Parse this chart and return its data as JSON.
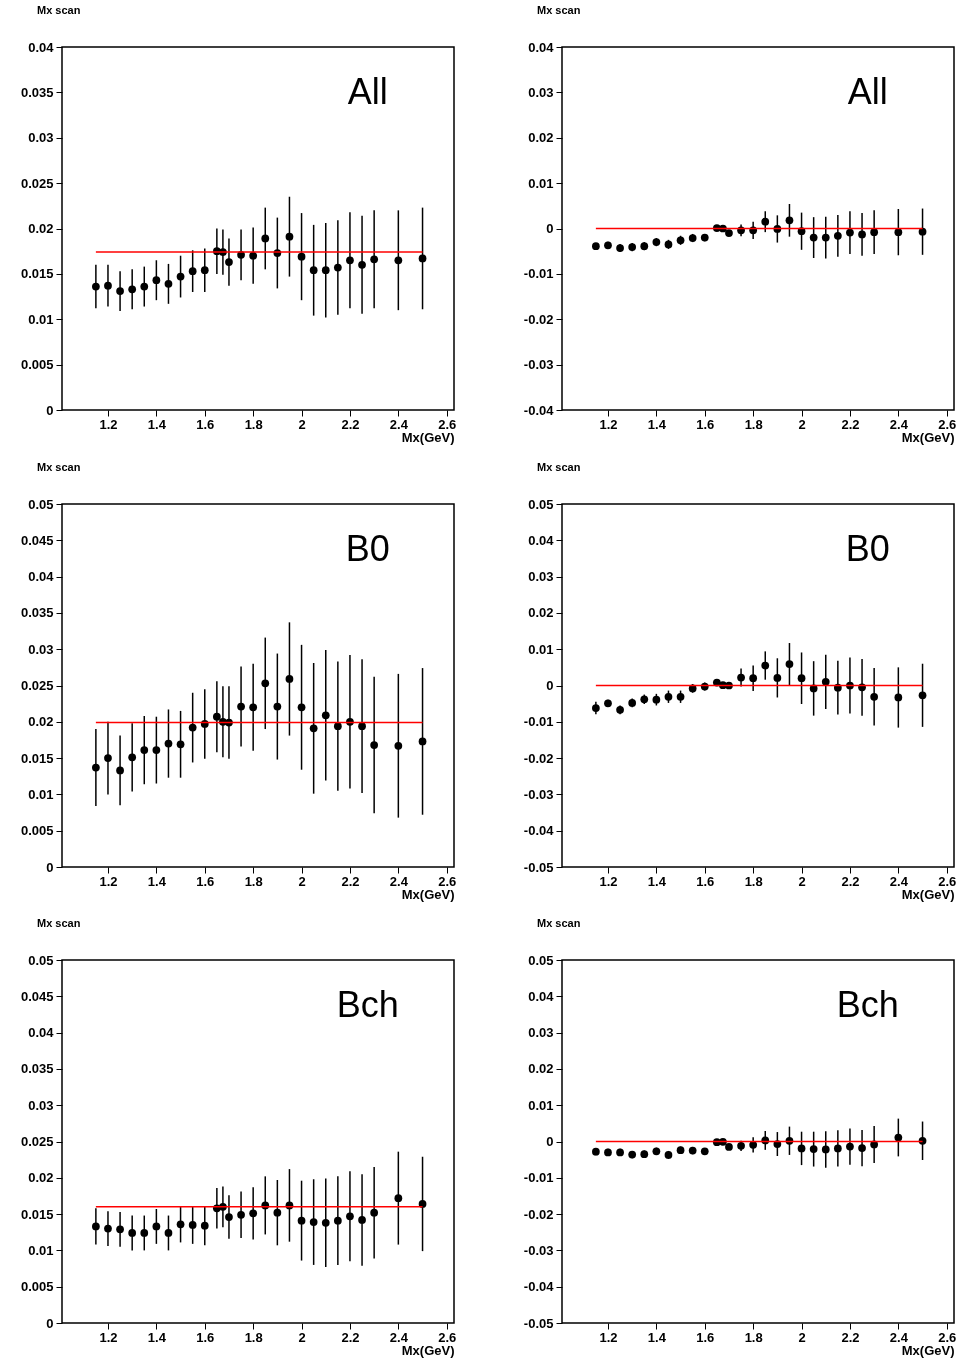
{
  "chart_data": [
    {
      "type": "scatter",
      "title": "Mx scan",
      "xlabel": "Mx(GeV)",
      "annotations": [
        "All"
      ],
      "grid": false,
      "x": [
        1.15,
        1.2,
        1.25,
        1.3,
        1.35,
        1.4,
        1.45,
        1.5,
        1.55,
        1.6,
        1.65,
        1.675,
        1.7,
        1.75,
        1.8,
        1.85,
        1.9,
        1.95,
        2.0,
        2.05,
        2.1,
        2.15,
        2.2,
        2.25,
        2.3,
        2.4,
        2.5
      ],
      "xlim": [
        1.01,
        2.63
      ],
      "xticks": [
        1.2,
        1.4,
        1.6,
        1.8,
        2,
        2.2,
        2.4,
        2.6
      ],
      "ylim": [
        0,
        0.04
      ],
      "yticks": [
        0,
        0.005,
        0.01,
        0.015,
        0.02,
        0.025,
        0.03,
        0.035,
        0.04
      ],
      "series": [
        {
          "color": "#000000",
          "marker": "circle",
          "values": [
            0.0136,
            0.0137,
            0.0131,
            0.0133,
            0.0136,
            0.0143,
            0.0139,
            0.0147,
            0.0153,
            0.0154,
            0.0175,
            0.0174,
            0.0163,
            0.0171,
            0.017,
            0.0189,
            0.0173,
            0.0191,
            0.0169,
            0.0154,
            0.0154,
            0.0157,
            0.0165,
            0.016,
            0.0166,
            0.0165,
            0.0167
          ],
          "errors": [
            0.0024,
            0.0023,
            0.0022,
            0.0022,
            0.0022,
            0.0022,
            0.0022,
            0.0023,
            0.0023,
            0.0024,
            0.0025,
            0.0025,
            0.0026,
            0.0028,
            0.0031,
            0.0034,
            0.0039,
            0.0044,
            0.0048,
            0.005,
            0.0052,
            0.0052,
            0.0053,
            0.0054,
            0.0054,
            0.0055,
            0.0056
          ]
        },
        {
          "type": "line",
          "color": "#ff0000",
          "values": [
            0.0174,
            0.0174,
            0.0174,
            0.0174,
            0.0174,
            0.0174,
            0.0174,
            0.0174,
            0.0174,
            0.0174,
            0.0174,
            0.0174,
            0.0174,
            0.0174,
            0.0174,
            0.0174,
            0.0174,
            0.0174,
            0.0174,
            0.0174,
            0.0174,
            0.0174,
            0.0174,
            0.0174,
            0.0174,
            0.0174,
            0.0174
          ]
        }
      ]
    },
    {
      "type": "scatter",
      "title": "Mx scan",
      "xlabel": "Mx(GeV)",
      "annotations": [
        "All"
      ],
      "grid": false,
      "x": [
        1.15,
        1.2,
        1.25,
        1.3,
        1.35,
        1.4,
        1.45,
        1.5,
        1.55,
        1.6,
        1.65,
        1.675,
        1.7,
        1.75,
        1.8,
        1.85,
        1.9,
        1.95,
        2.0,
        2.05,
        2.1,
        2.15,
        2.2,
        2.25,
        2.3,
        2.4,
        2.5
      ],
      "xlim": [
        1.01,
        2.63
      ],
      "xticks": [
        1.2,
        1.4,
        1.6,
        1.8,
        2,
        2.2,
        2.4,
        2.6
      ],
      "ylim": [
        -0.04,
        0.04
      ],
      "yticks": [
        -0.04,
        -0.03,
        -0.02,
        -0.01,
        0,
        0.01,
        0.02,
        0.03,
        0.04
      ],
      "series": [
        {
          "color": "#000000",
          "marker": "circle",
          "values": [
            -0.0039,
            -0.0037,
            -0.0043,
            -0.0041,
            -0.0039,
            -0.003,
            -0.0035,
            -0.0026,
            -0.0021,
            -0.002,
            0.0001,
            0,
            -0.001,
            -0.0004,
            -0.0004,
            0.0015,
            -0.0001,
            0.0018,
            -0.0006,
            -0.002,
            -0.002,
            -0.0016,
            -0.0009,
            -0.0013,
            -0.0008,
            -0.0008,
            -0.0007
          ],
          "errors": [
            0.0007,
            0.0008,
            0.0009,
            0.0009,
            0.0009,
            0.0009,
            0.001,
            0.001,
            0.0009,
            0.0008,
            0.0003,
            0.0003,
            0.0005,
            0.0013,
            0.0019,
            0.0023,
            0.003,
            0.0036,
            0.0041,
            0.0045,
            0.0046,
            0.0046,
            0.0047,
            0.0047,
            0.0048,
            0.0051,
            0.0051
          ]
        },
        {
          "type": "line",
          "color": "#ff0000",
          "values": [
            0,
            0,
            0,
            0,
            0,
            0,
            0,
            0,
            0,
            0,
            0,
            0,
            0,
            0,
            0,
            0,
            0,
            0,
            0,
            0,
            0,
            0,
            0,
            0,
            0,
            0,
            0
          ]
        }
      ]
    },
    {
      "type": "scatter",
      "title": "Mx scan",
      "xlabel": "Mx(GeV)",
      "annotations": [
        "B0"
      ],
      "grid": false,
      "x": [
        1.15,
        1.2,
        1.25,
        1.3,
        1.35,
        1.4,
        1.45,
        1.5,
        1.55,
        1.6,
        1.65,
        1.675,
        1.7,
        1.75,
        1.8,
        1.85,
        1.9,
        1.95,
        2.0,
        2.05,
        2.1,
        2.15,
        2.2,
        2.25,
        2.3,
        2.4,
        2.5
      ],
      "xlim": [
        1.01,
        2.63
      ],
      "xticks": [
        1.2,
        1.4,
        1.6,
        1.8,
        2,
        2.2,
        2.4,
        2.6
      ],
      "ylim": [
        0,
        0.05
      ],
      "yticks": [
        0,
        0.005,
        0.01,
        0.015,
        0.02,
        0.025,
        0.03,
        0.035,
        0.04,
        0.045,
        0.05
      ],
      "series": [
        {
          "color": "#000000",
          "marker": "circle",
          "values": [
            0.0137,
            0.015,
            0.0133,
            0.0151,
            0.0161,
            0.0161,
            0.017,
            0.0169,
            0.0192,
            0.0197,
            0.0207,
            0.02,
            0.0199,
            0.0221,
            0.022,
            0.0253,
            0.0221,
            0.0259,
            0.022,
            0.0191,
            0.0209,
            0.0194,
            0.02,
            0.0194,
            0.0168,
            0.0167,
            0.0173
          ],
          "errors": [
            0.0053,
            0.005,
            0.0048,
            0.0047,
            0.0047,
            0.0046,
            0.0047,
            0.0046,
            0.0048,
            0.0048,
            0.0049,
            0.0049,
            0.005,
            0.0055,
            0.006,
            0.0063,
            0.0073,
            0.0078,
            0.0086,
            0.009,
            0.009,
            0.0089,
            0.0092,
            0.0092,
            0.0094,
            0.0099,
            0.0101
          ]
        },
        {
          "type": "line",
          "color": "#ff0000",
          "values": [
            0.0199,
            0.0199,
            0.0199,
            0.0199,
            0.0199,
            0.0199,
            0.0199,
            0.0199,
            0.0199,
            0.0199,
            0.0199,
            0.0199,
            0.0199,
            0.0199,
            0.0199,
            0.0199,
            0.0199,
            0.0199,
            0.0199,
            0.0199,
            0.0199,
            0.0199,
            0.0199,
            0.0199,
            0.0199,
            0.0199,
            0.0199
          ]
        }
      ]
    },
    {
      "type": "scatter",
      "title": "Mx scan",
      "xlabel": "Mx(GeV)",
      "annotations": [
        "B0"
      ],
      "grid": false,
      "x": [
        1.15,
        1.2,
        1.25,
        1.3,
        1.35,
        1.4,
        1.45,
        1.5,
        1.55,
        1.6,
        1.65,
        1.675,
        1.7,
        1.75,
        1.8,
        1.85,
        1.9,
        1.95,
        2.0,
        2.05,
        2.1,
        2.15,
        2.2,
        2.25,
        2.3,
        2.4,
        2.5
      ],
      "xlim": [
        1.01,
        2.63
      ],
      "xticks": [
        1.2,
        1.4,
        1.6,
        1.8,
        2,
        2.2,
        2.4,
        2.6
      ],
      "ylim": [
        -0.05,
        0.05
      ],
      "yticks": [
        -0.05,
        -0.04,
        -0.03,
        -0.02,
        -0.01,
        0,
        0.01,
        0.02,
        0.03,
        0.04,
        0.05
      ],
      "series": [
        {
          "color": "#000000",
          "marker": "circle",
          "values": [
            -0.0062,
            -0.0049,
            -0.0067,
            -0.0048,
            -0.0038,
            -0.0039,
            -0.0031,
            -0.0031,
            -0.0008,
            -0.0003,
            0.0008,
            0.0001,
            0,
            0.0022,
            0.002,
            0.0055,
            0.0021,
            0.0059,
            0.002,
            -0.0008,
            0.001,
            -0.0006,
            0,
            -0.0005,
            -0.0031,
            -0.0033,
            -0.0027
          ],
          "errors": [
            0.0017,
            0.001,
            0.0012,
            0.0012,
            0.0013,
            0.0016,
            0.0017,
            0.0017,
            0.0012,
            0.0011,
            0.0005,
            0.0005,
            0.0006,
            0.0025,
            0.0035,
            0.0039,
            0.0054,
            0.0058,
            0.0071,
            0.0075,
            0.0075,
            0.0074,
            0.0077,
            0.0078,
            0.0079,
            0.0083,
            0.0087
          ]
        },
        {
          "type": "line",
          "color": "#ff0000",
          "values": [
            0,
            0,
            0,
            0,
            0,
            0,
            0,
            0,
            0,
            0,
            0,
            0,
            0,
            0,
            0,
            0,
            0,
            0,
            0,
            0,
            0,
            0,
            0,
            0,
            0,
            0,
            0
          ]
        }
      ]
    },
    {
      "type": "scatter",
      "title": "Mx scan",
      "xlabel": "Mx(GeV)",
      "annotations": [
        "Bch"
      ],
      "grid": false,
      "x": [
        1.15,
        1.2,
        1.25,
        1.3,
        1.35,
        1.4,
        1.45,
        1.5,
        1.55,
        1.6,
        1.65,
        1.675,
        1.7,
        1.75,
        1.8,
        1.85,
        1.9,
        1.95,
        2.0,
        2.05,
        2.1,
        2.15,
        2.2,
        2.25,
        2.3,
        2.4,
        2.5
      ],
      "xlim": [
        1.01,
        2.63
      ],
      "xticks": [
        1.2,
        1.4,
        1.6,
        1.8,
        2,
        2.2,
        2.4,
        2.6
      ],
      "ylim": [
        0,
        0.05
      ],
      "yticks": [
        0,
        0.005,
        0.01,
        0.015,
        0.02,
        0.025,
        0.03,
        0.035,
        0.04,
        0.045,
        0.05
      ],
      "series": [
        {
          "color": "#000000",
          "marker": "circle",
          "values": [
            0.0133,
            0.013,
            0.0129,
            0.0124,
            0.0124,
            0.0133,
            0.0124,
            0.0136,
            0.0135,
            0.0134,
            0.0158,
            0.016,
            0.0146,
            0.0149,
            0.0151,
            0.0162,
            0.0152,
            0.0162,
            0.0141,
            0.0139,
            0.0138,
            0.0141,
            0.0147,
            0.0142,
            0.0152,
            0.0172,
            0.0164
          ],
          "errors": [
            0.0025,
            0.0024,
            0.0024,
            0.0024,
            0.0024,
            0.0024,
            0.0024,
            0.0025,
            0.0026,
            0.0027,
            0.0028,
            0.0028,
            0.003,
            0.0032,
            0.0036,
            0.004,
            0.0045,
            0.005,
            0.0055,
            0.0059,
            0.0061,
            0.0061,
            0.0062,
            0.0063,
            0.0063,
            0.0064,
            0.0065
          ]
        },
        {
          "type": "line",
          "color": "#ff0000",
          "values": [
            0.016,
            0.016,
            0.016,
            0.016,
            0.016,
            0.016,
            0.016,
            0.016,
            0.016,
            0.016,
            0.016,
            0.016,
            0.016,
            0.016,
            0.016,
            0.016,
            0.016,
            0.016,
            0.016,
            0.016,
            0.016,
            0.016,
            0.016,
            0.016,
            0.016,
            0.016,
            0.016
          ]
        }
      ]
    },
    {
      "type": "scatter",
      "title": "Mx scan",
      "xlabel": "Mx(GeV)",
      "annotations": [
        "Bch"
      ],
      "grid": false,
      "x": [
        1.15,
        1.2,
        1.25,
        1.3,
        1.35,
        1.4,
        1.45,
        1.5,
        1.55,
        1.6,
        1.65,
        1.675,
        1.7,
        1.75,
        1.8,
        1.85,
        1.9,
        1.95,
        2.0,
        2.05,
        2.1,
        2.15,
        2.2,
        2.25,
        2.3,
        2.4,
        2.5
      ],
      "xlim": [
        1.01,
        2.63
      ],
      "xticks": [
        1.2,
        1.4,
        1.6,
        1.8,
        2,
        2.2,
        2.4,
        2.6
      ],
      "ylim": [
        -0.05,
        0.05
      ],
      "yticks": [
        -0.05,
        -0.04,
        -0.03,
        -0.02,
        -0.01,
        0,
        0.01,
        0.02,
        0.03,
        0.04,
        0.05
      ],
      "series": [
        {
          "color": "#000000",
          "marker": "circle",
          "values": [
            -0.0028,
            -0.003,
            -0.003,
            -0.0036,
            -0.0035,
            -0.0027,
            -0.0037,
            -0.0024,
            -0.0025,
            -0.0027,
            -0.0002,
            -0.0001,
            -0.0015,
            -0.0012,
            -0.0009,
            0.0003,
            -0.0007,
            0.0002,
            -0.0019,
            -0.0021,
            -0.0022,
            -0.0019,
            -0.0014,
            -0.0018,
            -0.0008,
            0.0011,
            0.0002
          ],
          "errors": [
            0.001,
            0.001,
            0.001,
            0.001,
            0.001,
            0.001,
            0.0011,
            0.001,
            0.001,
            0.0008,
            0.0004,
            0.0004,
            0.0006,
            0.0014,
            0.0021,
            0.0026,
            0.0033,
            0.0039,
            0.0046,
            0.0048,
            0.005,
            0.005,
            0.005,
            0.005,
            0.0051,
            0.0052,
            0.0053
          ]
        },
        {
          "type": "line",
          "color": "#ff0000",
          "values": [
            0,
            0,
            0,
            0,
            0,
            0,
            0,
            0,
            0,
            0,
            0,
            0,
            0,
            0,
            0,
            0,
            0,
            0,
            0,
            0,
            0,
            0,
            0,
            0,
            0,
            0,
            0
          ]
        }
      ]
    }
  ]
}
